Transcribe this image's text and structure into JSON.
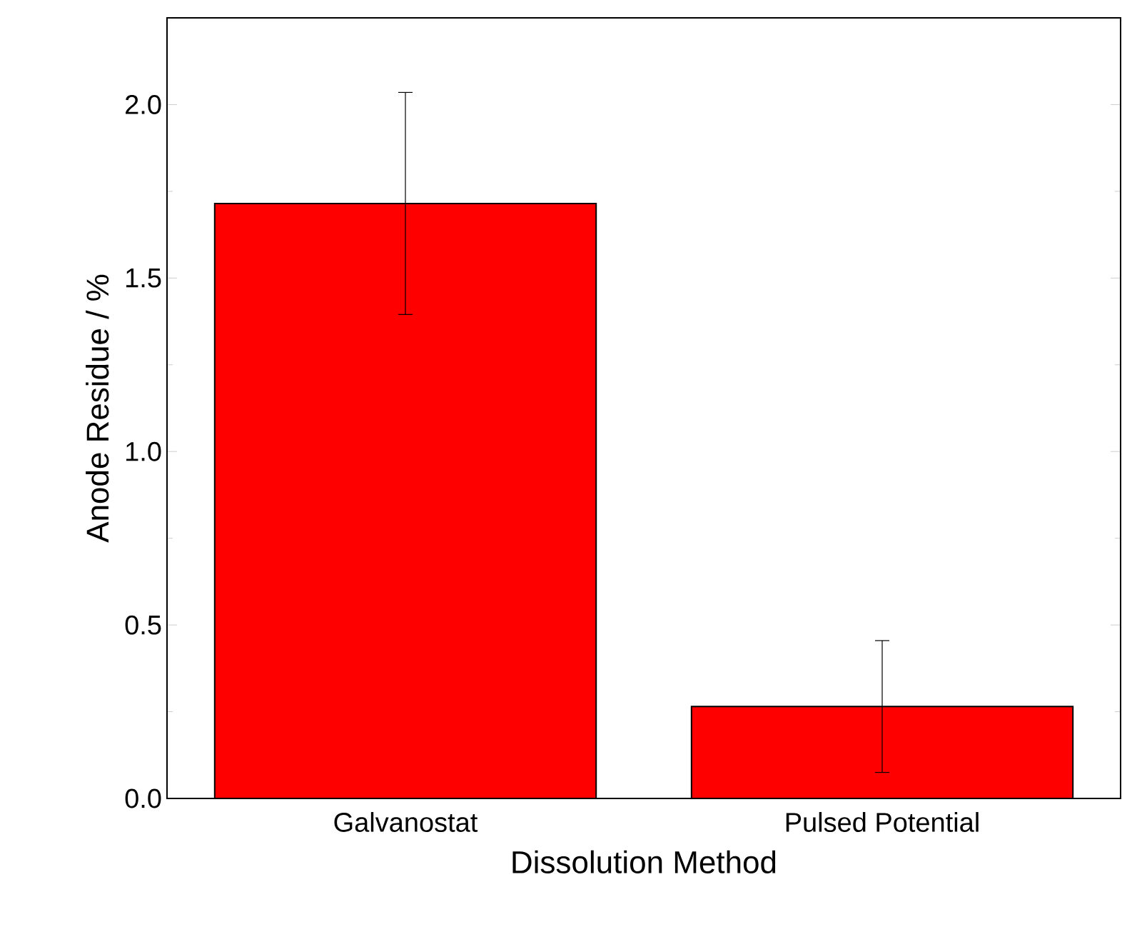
{
  "chart_data": {
    "type": "bar",
    "xlabel": "Dissolution Method",
    "ylabel": "Anode Residue / %",
    "categories": [
      "Galvanostat",
      "Pulsed Potential"
    ],
    "values": [
      1.715,
      0.265
    ],
    "errors": [
      0.32,
      0.19
    ],
    "color": "#ff0000",
    "ylim": [
      0,
      2.25
    ],
    "yticks": [
      {
        "value": 0,
        "label": "0.0"
      },
      0.5,
      {
        "value": 1,
        "label": "1.0"
      },
      1.5,
      {
        "value": 2,
        "label": "2.0"
      }
    ]
  }
}
